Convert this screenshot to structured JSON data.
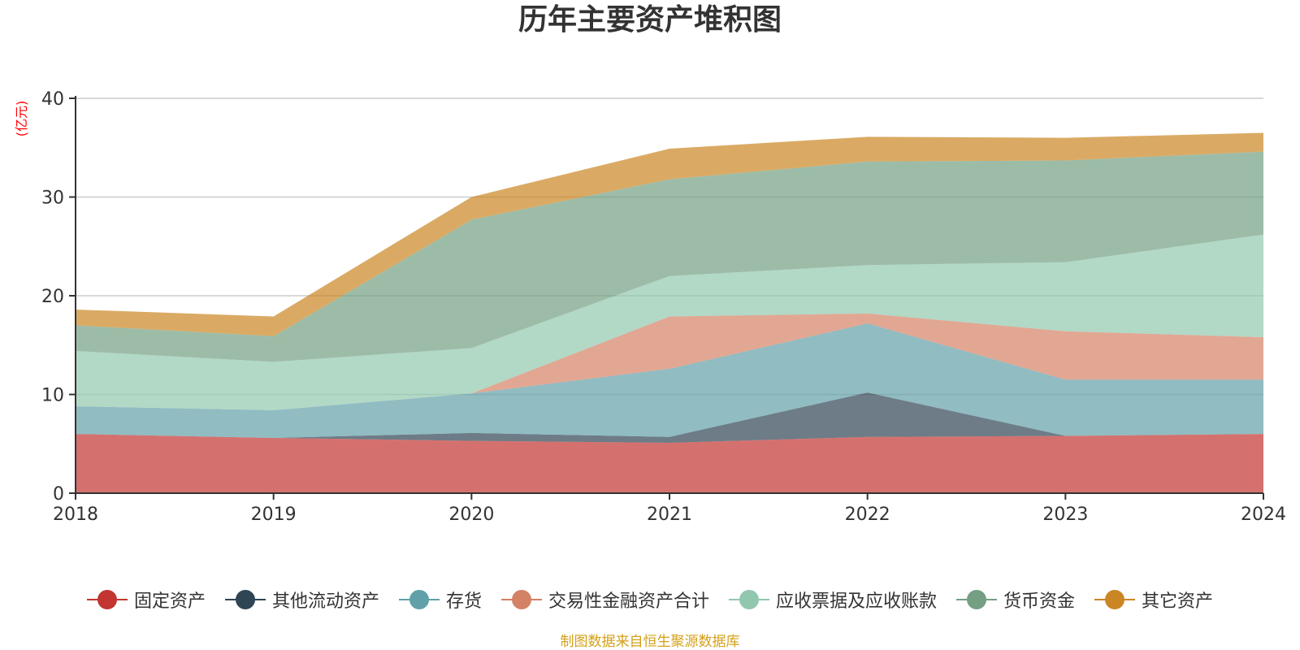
{
  "footer_note": "制图数据来自恒生聚源数据库",
  "chart_data": {
    "type": "area",
    "stacked": true,
    "title": "历年主要资产堆积图",
    "ylabel": "(亿元)",
    "xlabel": "",
    "x": [
      "2018",
      "2019",
      "2020",
      "2021",
      "2022",
      "2023",
      "2024"
    ],
    "ylim": [
      0,
      40
    ],
    "yticks": [
      "0",
      "10",
      "20",
      "30",
      "40"
    ],
    "grid": true,
    "legend_position": "bottom",
    "series": [
      {
        "name": "固定资产",
        "color": "#c23531",
        "values": [
          6.0,
          5.6,
          5.3,
          5.1,
          5.7,
          5.8,
          6.0
        ]
      },
      {
        "name": "其他流动资产",
        "color": "#2f4554",
        "values": [
          0.0,
          0.0,
          0.8,
          0.6,
          4.5,
          0.0,
          0.0
        ]
      },
      {
        "name": "存货",
        "color": "#61a0a8",
        "values": [
          2.8,
          2.8,
          4.0,
          6.9,
          7.0,
          5.7,
          5.5
        ]
      },
      {
        "name": "交易性金融资产合计",
        "color": "#d48265",
        "values": [
          0.0,
          0.0,
          0.0,
          5.3,
          1.0,
          4.9,
          4.3
        ]
      },
      {
        "name": "应收票据及应收账款",
        "color": "#91c7ae",
        "values": [
          5.6,
          4.9,
          4.6,
          4.1,
          4.9,
          7.0,
          10.4
        ]
      },
      {
        "name": "货币资金",
        "color": "#749f83",
        "values": [
          2.6,
          2.6,
          13.0,
          9.8,
          10.5,
          10.3,
          8.4
        ]
      },
      {
        "name": "其它资产",
        "color": "#ca8622",
        "values": [
          1.6,
          2.0,
          2.3,
          3.1,
          2.5,
          2.3,
          1.9
        ]
      }
    ]
  }
}
